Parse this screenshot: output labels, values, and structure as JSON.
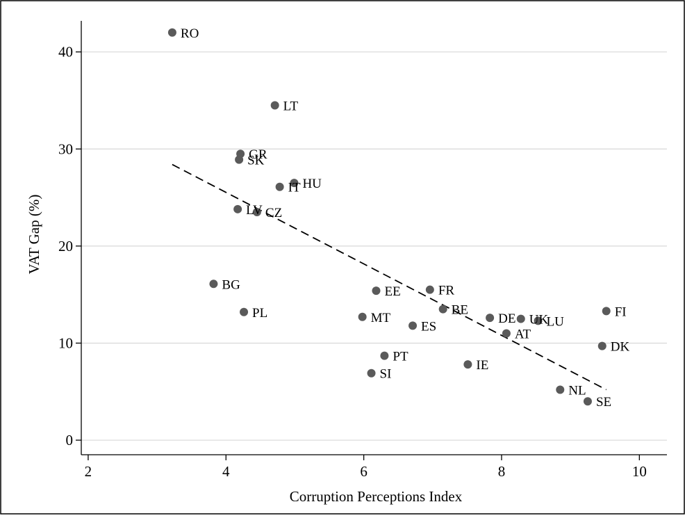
{
  "chart_data": {
    "type": "scatter",
    "xlabel": "Corruption Perceptions Index",
    "ylabel": "VAT Gap (%)",
    "xlim": [
      1.9,
      10.4
    ],
    "ylim": [
      -1.5,
      43.2
    ],
    "x_ticks": [
      2,
      4,
      6,
      8,
      10
    ],
    "y_ticks": [
      0,
      10,
      20,
      30,
      40
    ],
    "grid": "horizontal",
    "legend": "none",
    "colors": {
      "point": "#5a5a5a",
      "grid": "#d8d8d8",
      "axis": "#000000",
      "fit_line": "#000000"
    },
    "points": [
      {
        "label": "RO",
        "x": 3.22,
        "y": 42.0
      },
      {
        "label": "LT",
        "x": 4.71,
        "y": 34.5
      },
      {
        "label": "GR",
        "x": 4.21,
        "y": 29.5
      },
      {
        "label": "SK",
        "x": 4.19,
        "y": 28.9
      },
      {
        "label": "HU",
        "x": 4.99,
        "y": 26.5
      },
      {
        "label": "IT",
        "x": 4.78,
        "y": 26.1
      },
      {
        "label": "LV",
        "x": 4.17,
        "y": 23.8
      },
      {
        "label": "CZ",
        "x": 4.45,
        "y": 23.5
      },
      {
        "label": "BG",
        "x": 3.82,
        "y": 16.1
      },
      {
        "label": "PL",
        "x": 4.26,
        "y": 13.2
      },
      {
        "label": "EE",
        "x": 6.18,
        "y": 15.4
      },
      {
        "label": "FR",
        "x": 6.96,
        "y": 15.5
      },
      {
        "label": "BE",
        "x": 7.15,
        "y": 13.5
      },
      {
        "label": "MT",
        "x": 5.98,
        "y": 12.7
      },
      {
        "label": "ES",
        "x": 6.71,
        "y": 11.8
      },
      {
        "label": "DE",
        "x": 7.83,
        "y": 12.6
      },
      {
        "label": "UK",
        "x": 8.28,
        "y": 12.5
      },
      {
        "label": "LU",
        "x": 8.53,
        "y": 12.3
      },
      {
        "label": "AT",
        "x": 8.07,
        "y": 11.0
      },
      {
        "label": "FI",
        "x": 9.52,
        "y": 13.3
      },
      {
        "label": "DK",
        "x": 9.46,
        "y": 9.7
      },
      {
        "label": "PT",
        "x": 6.3,
        "y": 8.7
      },
      {
        "label": "SI",
        "x": 6.11,
        "y": 6.9
      },
      {
        "label": "IE",
        "x": 7.51,
        "y": 7.8
      },
      {
        "label": "NL",
        "x": 8.85,
        "y": 5.2
      },
      {
        "label": "SE",
        "x": 9.25,
        "y": 4.0
      }
    ],
    "fit_line": {
      "style": "dashed",
      "x": [
        3.22,
        9.52
      ],
      "y": [
        28.4,
        5.2
      ]
    }
  }
}
